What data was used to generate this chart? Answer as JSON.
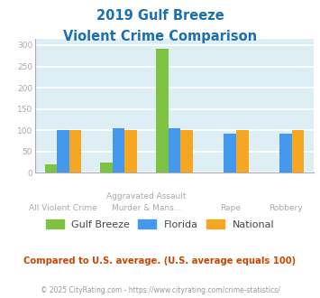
{
  "title_line1": "2019 Gulf Breeze",
  "title_line2": "Violent Crime Comparison",
  "colors": {
    "gulf_breeze": "#7dc242",
    "florida": "#4499ee",
    "national": "#f5a623",
    "title": "#1a6faf",
    "background": "#ddeef4",
    "grid": "#ffffff",
    "axis_line": "#aaaaaa",
    "footer_text": "#999999",
    "compare_text": "#cc4400",
    "tick_label": "#aaaaaa",
    "url_text": "#4499ee"
  },
  "gb_vals": [
    20,
    25,
    291,
    0,
    0
  ],
  "fl_vals": [
    101,
    105,
    105,
    93,
    93
  ],
  "nat_vals": [
    101,
    101,
    101,
    101,
    101
  ],
  "ylim": [
    0,
    315
  ],
  "yticks": [
    0,
    50,
    100,
    150,
    200,
    250,
    300
  ],
  "bar_width": 0.22,
  "subtitle": "Compared to U.S. average. (U.S. average equals 100)",
  "footer_copy": "© 2025 CityRating.com - ",
  "footer_url": "https://www.cityrating.com/crime-statistics/",
  "legend_labels": [
    "Gulf Breeze",
    "Florida",
    "National"
  ],
  "top_labels": [
    "",
    "Aggravated Assault",
    "",
    "",
    ""
  ],
  "bot_labels": [
    "All Violent Crime",
    "Murder & Mans...",
    "",
    "Rape",
    "Robbery"
  ]
}
